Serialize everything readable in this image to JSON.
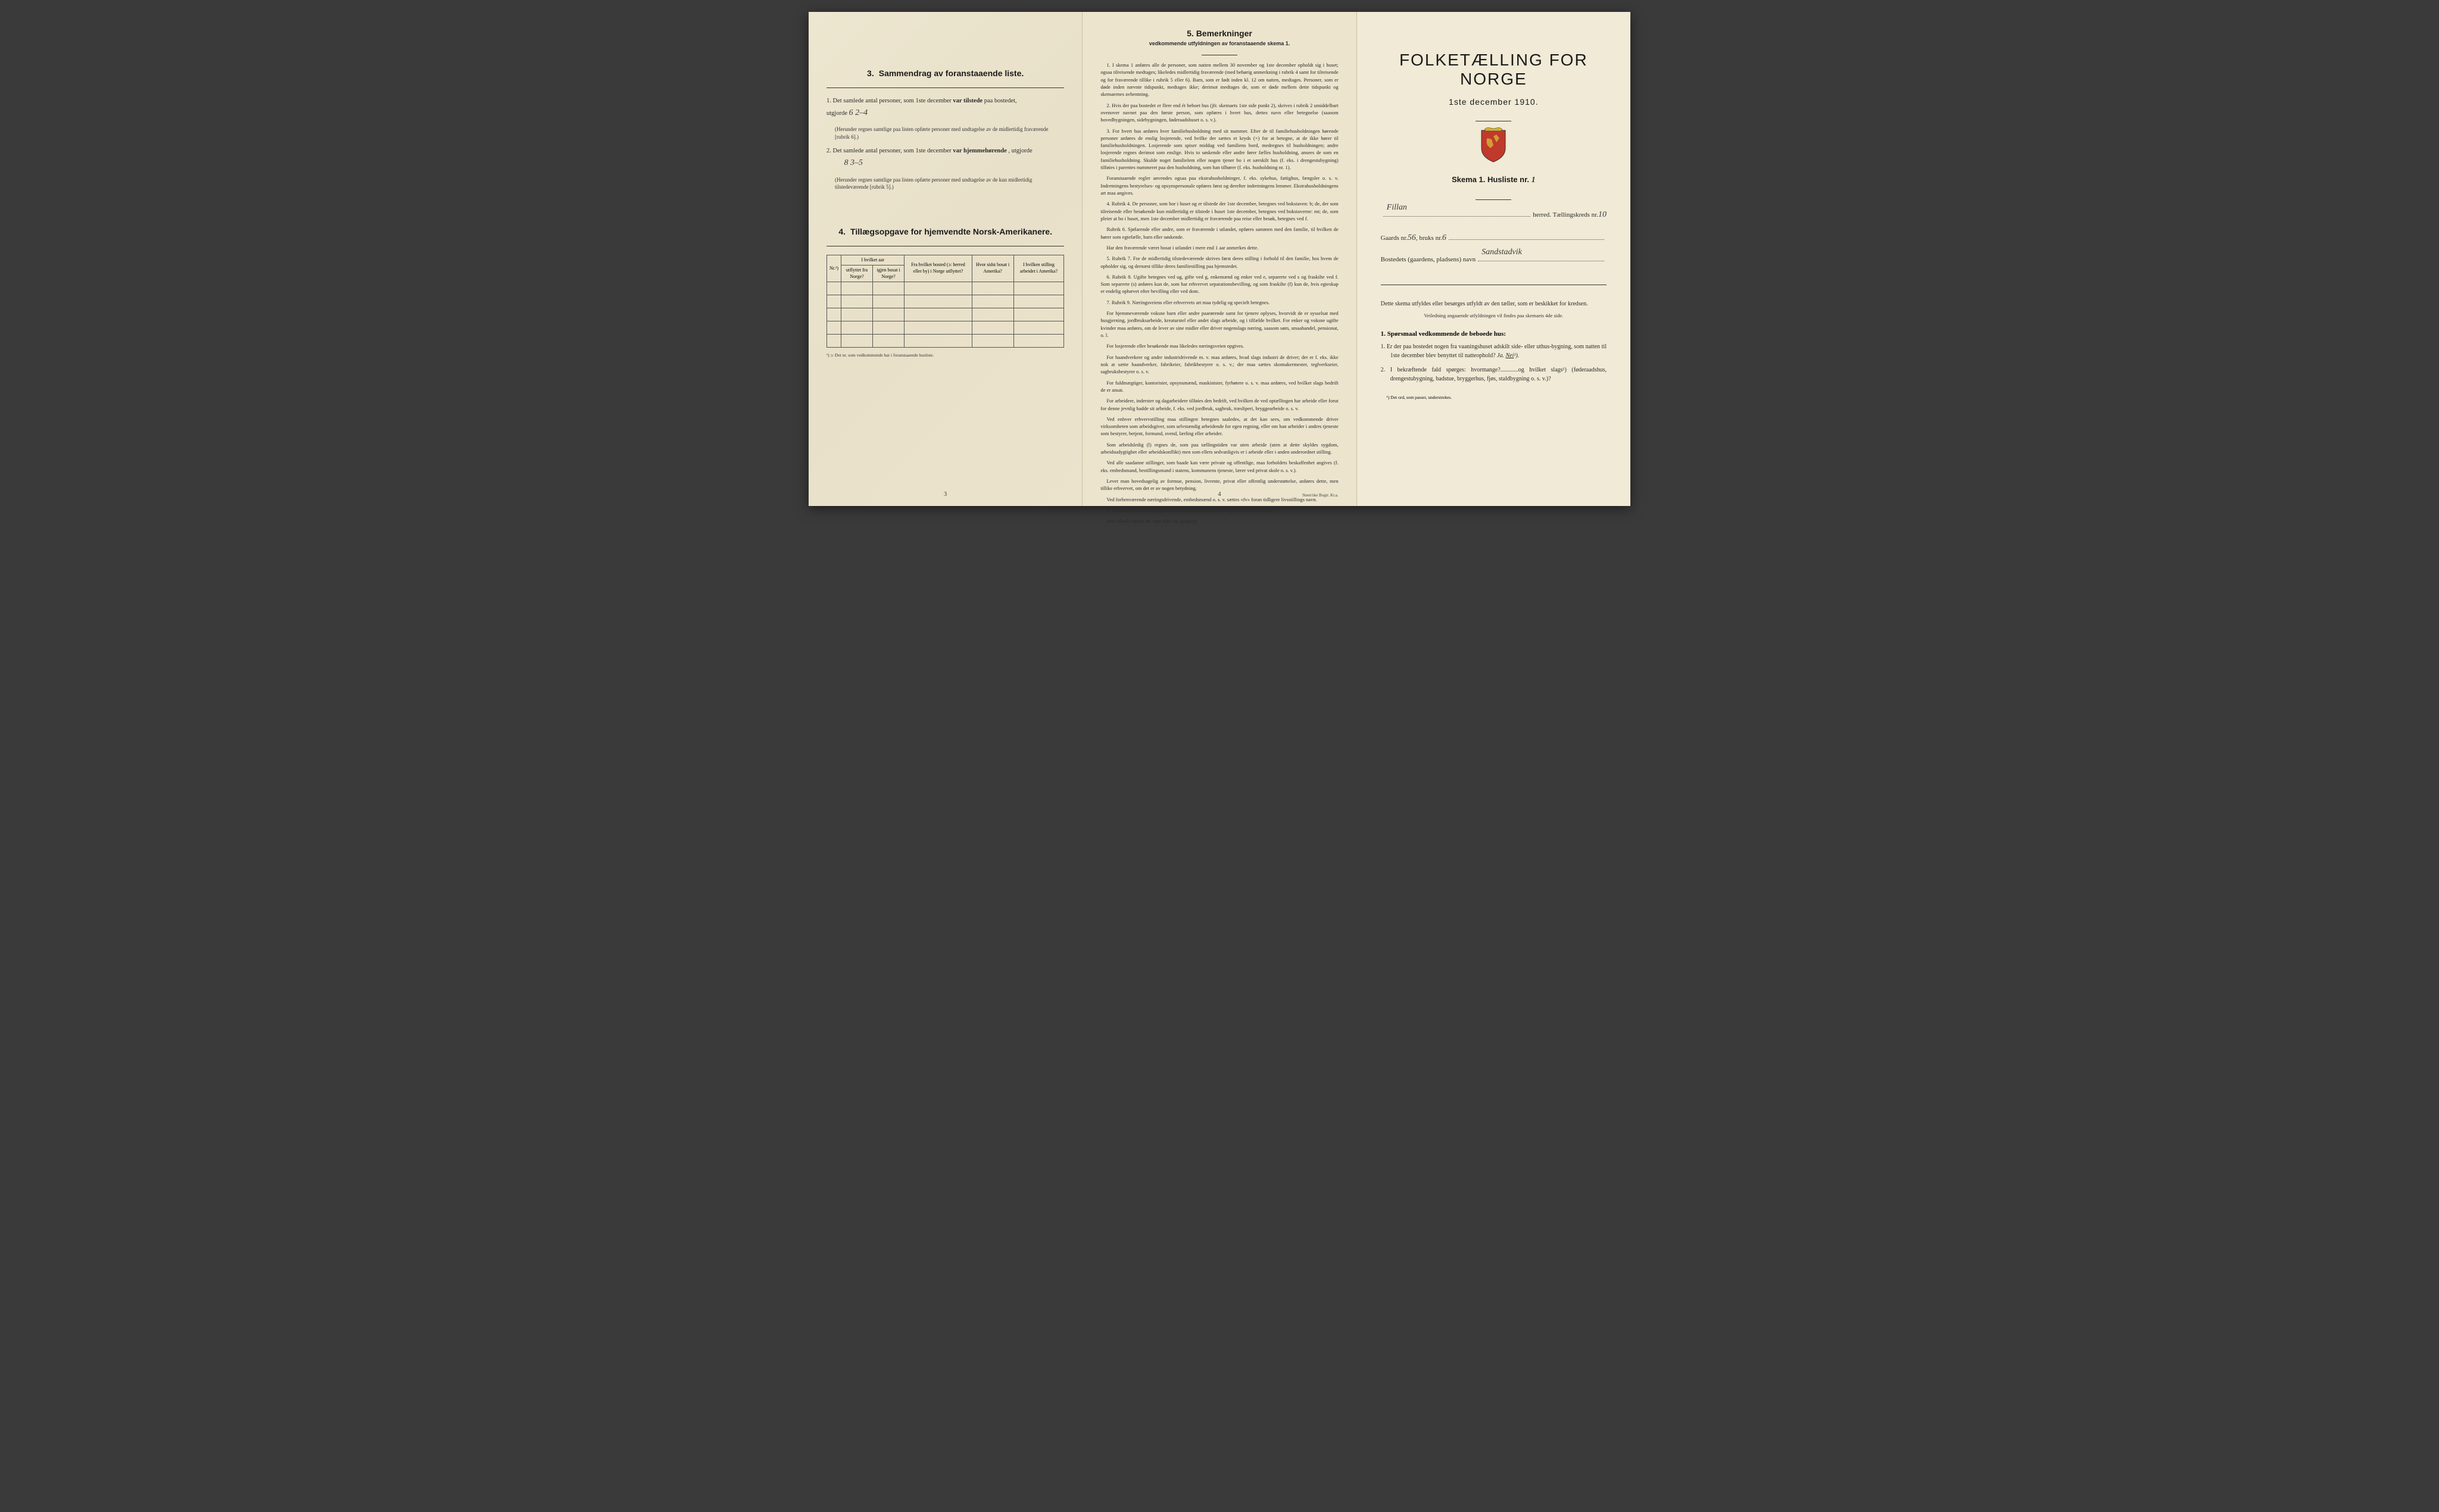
{
  "page1": {
    "section3": {
      "title": "Sammendrag av foranstaaende liste.",
      "item1_a": "1. Det samlede antal personer, som 1ste december",
      "item1_b": "var tilstede",
      "item1_c": "paa bostedet,",
      "item1_utg": "utgjorde",
      "hw1": "6   2–4",
      "note1": "(Herunder regnes samtlige paa listen opførte personer med undtagelse av de midlertidig fraværende [rubrik 6].)",
      "item2_a": "2. Det samlede antal personer, som 1ste december",
      "item2_b": "var hjemmehørende",
      "item2_c": ", utgjorde",
      "hw2": "8   3–5",
      "note2": "(Herunder regnes samtlige paa listen opførte personer med undtagelse av de kun midlertidig tilstedeværende [rubrik 5].)"
    },
    "section4": {
      "title": "Tillægsopgave for hjemvendte Norsk-Amerikanere.",
      "col1": "Nr.¹)",
      "col2a": "I hvilket aar",
      "col2b": "utflyttet fra Norge?",
      "col2c": "igjen bosat i Norge?",
      "col3": "Fra hvilket bosted (ɔ: herred eller by) i Norge utflyttet?",
      "col4": "Hvor sidst bosat i Amerika?",
      "col5": "I hvilken stilling arbeidet i Amerika?",
      "footnote": "¹) ɔ: Det nr. som vedkommende har i foranstaaende husliste."
    },
    "page_num": "3"
  },
  "page2": {
    "title": "5.   Bemerkninger",
    "subtitle": "vedkommende utfyldningen av foranstaaende skema 1.",
    "items": [
      "1. I skema 1 anføres alle de personer, som natten mellem 30 november og 1ste december opholdt sig i huset; ogsaa tilreisende medtages; likeledes midlertidig fraværende (med behørig anmerkning i rubrik 4 samt for tilreisende og for fraværende tillike i rubrik 5 eller 6). Barn, som er født inden kl. 12 om natten, medtages. Personer, som er døde inden nævnte tidspunkt, medtages ikke; derimot medtages de, som er døde mellem dette tidspunkt og skemaernes avhentning.",
      "2. Hvis der paa bostedet er flere end ét beboet hus (jfr. skemaets 1ste side punkt 2), skrives i rubrik 2 umiddelbart ovenover navnet paa den første person, som opføres i hvert hus, dettes navn eller betegnelse (saasom hovedbygningen, sidebygningen, føderaadshuset o. s. v.).",
      "3. For hvert hus anføres hver familiehusholdning med sit nummer. Efter de til familiehusholdningen hørende personer anføres de enslig losjerende, ved hvilke der sættes et kryds (×) for at betegne, at de ikke hører til familiehusholdningen. Losjerende som spiser middag ved familiens bord, medregnes til husholdningen; andre losjerende regnes derimot som enslige. Hvis to søskende eller andre fører fælles husholdning, ansees de som en familiehusholdning. Skulde noget familielem eller nogen tjener bo i et særskilt hus (f. eks. i drengestubygning) tilføies i parentes nummeret paa den husholdning, som han tilhører (f. eks. husholdning nr. 1).",
      "Foranstaaende regler anvendes ogsaa paa ekstrahusholdninger, f. eks. sykehus, fattighus, fængsler o. s. v. Indretningens bestyrelses- og opsynspersonale opføres først og derefter indretningens lemmer. Ekstrahusholdningens art maa angives.",
      "4. Rubrik 4. De personer, som bor i huset og er tilstede der 1ste december, betegnes ved bokstaven: b; de, der som tilreisende eller besøkende kun midlertidig er tilstede i huset 1ste december, betegnes ved bokstaverne: mt; de, som pleier at bo i huset, men 1ste december midlertidig er fraværende paa reise eller besøk, betegnes ved f.",
      "Rubrik 6. Sjøfarende eller andre, som er fraværende i utlandet, opføres sammen med den familie, til hvilken de hører som egtefælle, barn eller søskende.",
      "Har den fraværende været bosat i utlandet i mere end 1 aar anmerkes dette.",
      "5. Rubrik 7. For de midlertidig tilstedeværende skrives først deres stilling i forhold til den familie, hos hvem de opholder sig, og dernæst tillike deres familiestilling paa hjemstedet.",
      "6. Rubrik 8. Ugifte betegnes ved ug, gifte ved g, enkemænd og enker ved e, separerte ved s og fraskilte ved f. Som separerte (s) anføres kun de, som har erhvervet separationsbevilling, og som fraskilte (f) kun de, hvis egteskap er endelig ophævet efter bevilling eller ved dom.",
      "7. Rubrik 9. Næringsveiens eller erhvervets art maa tydelig og specielt betegnes.",
      "For hjemmeværende voksne barn eller andre paarørende samt for tjenere oplyses, hvorvidt de er sysselsat med husgjerning, jordbruksarbeide, kreaturstel eller andet slags arbeide, og i tilfælde hvilket. For enker og voksne ugifte kvinder maa anføres, om de lever av sine midler eller driver nogenslags næring, saasom søm, smaahandel, pensionat, o. l.",
      "For losjerende eller besøkende maa likeledes næringsveien opgives.",
      "For haandverkere og andre industridrivende m. v. maa anføres, hvad slags industri de driver; det er f. eks. ikke nok at sætte haandverker, fabrikeier, fabrikbestyrer o. s. v.; der maa sættes skomakermester, teglverkseier, sagbruksbestyrer o. s. v.",
      "For fuldmægtiger, kontorister, opsynsmænd, maskinister, fyrbøtere o. s. v. maa anføres, ved hvilket slags bedrift de er ansat.",
      "For arbeidere, inderster og dagarbeidere tilføies den bedrift, ved hvilken de ved optællingen har arbeide eller forut for denne jevnlig hadde sit arbeide, f. eks. ved jordbruk, sagbruk, træsliperi, bryggearbeide o. s. v.",
      "Ved enhver erhvervstilling maa stillingen betegnes saaledes, at det kan sees, om vedkommende driver virksomheten som arbeidsgiver, som selvstændig arbeidende for egen regning, eller om han arbeider i andres tjeneste som bestyrer, betjent, formand, svend, lærling eller arbeider.",
      "Som arbeidsledig (l) regnes de, som paa tællingstiden var uten arbeide (uten at dette skyldes sygdom, arbeidsudygtighet eller arbeidskonflikt) men som ellers sedvanligvis er i arbeide eller i anden underordnet stilling.",
      "Ved alle saadanne stillinger, som baade kan være private og offentlige, maa forholdets beskaffenhet angives (f. eks. embedsmand, bestillingsmand i statens, kommunens tjeneste, lærer ved privat skole o. s. v.).",
      "Lever man hovedsagelig av formue, pension, livrente, privat eller offentlig understøttelse, anføres dette, men tillike erhvervet, om det er av nogen betydning.",
      "Ved forhenværende næringsdrivende, embedsmænd o. s. v. sættes «fv» foran tidligere livsstillings navn.",
      "8. Rubrik 14. Sinker og lignende aandssløve maa ikke medregnes som aandssvake.",
      "Som blinde regnes de, som ikke har gangsyn."
    ],
    "page_num": "4",
    "printer": "Steen'ske Bogtr.  Kr.a."
  },
  "page3": {
    "title": "FOLKETÆLLING FOR NORGE",
    "date": "1ste december 1910.",
    "skema_a": "Skema 1.   Husliste nr.",
    "skema_hw": "1",
    "field_herred": "herred.  Tællingskreds nr.",
    "hw_herred": "Fillan",
    "hw_kreds": "10",
    "field_gaard_a": "Gaards nr.",
    "hw_gaard": "56",
    "field_gaard_b": ", bruks nr.",
    "hw_bruks": "6",
    "field_bosted": "Bostedets (gaardens, pladsens) navn",
    "hw_bosted": "Sandstadvik",
    "para": "Dette skema utfyldes eller besørges utfyldt av den tæller, som er beskikket for kredsen.",
    "veil": "Veiledning angaaende utfyldningen vil findes paa skemaets 4de side.",
    "q_head": "1. Spørsmaal vedkommende de beboede hus:",
    "q1": "1. Er der paa bostedet nogen fra vaaningshuset adskilt side- eller uthus-bygning, som natten til 1ste december blev benyttet til natteophold?",
    "q1_ja": "Ja.",
    "q1_nei": "Nei",
    "q1_sup": "¹).",
    "q2": "2. I bekræftende fald spørges: hvormange?............og hvilket slags¹) (føderaadshus, drengestubygning, badstue, bryggerhus, fjøs, staldbygning o. s. v.)?",
    "foot": "¹) Det ord, som passer, understrekes."
  }
}
